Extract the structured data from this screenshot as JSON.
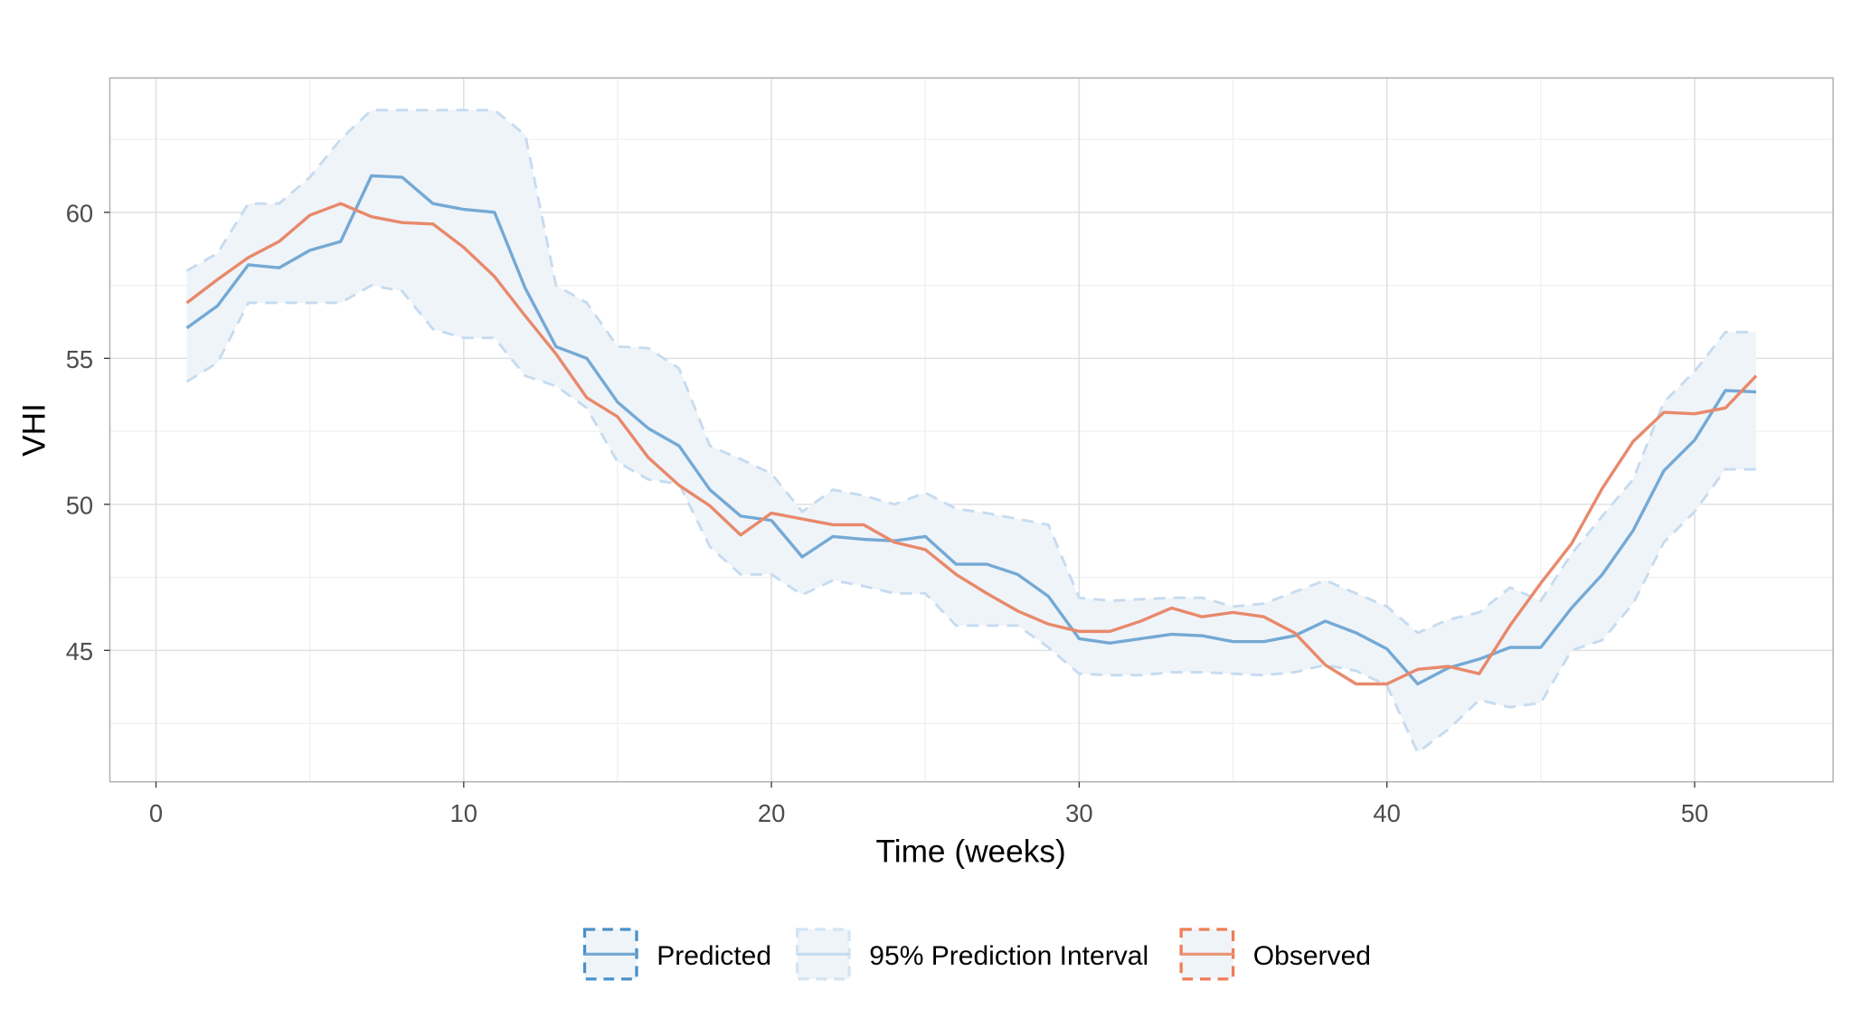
{
  "chart_data": {
    "type": "line",
    "title": "",
    "xlabel": "Time (weeks)",
    "ylabel": "VHI",
    "xlim": [
      -1.5,
      54.5
    ],
    "ylim": [
      40.5,
      64.6
    ],
    "xticks": [
      0,
      10,
      20,
      30,
      40,
      50
    ],
    "yticks": [
      45,
      50,
      55,
      60
    ],
    "grid": true,
    "legend_position": "bottom",
    "colors": {
      "predicted": "#74a9d4",
      "interval_fill": "#eff4f9",
      "interval_edge": "#c6dbef",
      "observed": "#e8896b",
      "observed_key": "#ef7d55",
      "predicted_key": "#4a90c8"
    },
    "x": [
      1,
      2,
      3,
      4,
      5,
      6,
      7,
      8,
      9,
      10,
      11,
      12,
      13,
      14,
      15,
      16,
      17,
      18,
      19,
      20,
      21,
      22,
      23,
      24,
      25,
      26,
      27,
      28,
      29,
      30,
      31,
      32,
      33,
      34,
      35,
      36,
      37,
      38,
      39,
      40,
      41,
      42,
      43,
      44,
      45,
      46,
      47,
      48,
      49,
      50,
      51,
      52
    ],
    "series": [
      {
        "name": "Predicted",
        "values": [
          56.04,
          56.8,
          58.2,
          58.1,
          58.7,
          59.0,
          61.25,
          61.2,
          60.3,
          60.1,
          60.0,
          57.4,
          55.4,
          55.0,
          53.5,
          52.6,
          52.0,
          50.5,
          49.6,
          49.45,
          48.2,
          48.9,
          48.8,
          48.75,
          48.9,
          47.95,
          47.95,
          47.6,
          46.85,
          45.4,
          45.25,
          45.4,
          45.55,
          45.5,
          45.3,
          45.3,
          45.5,
          46.0,
          45.6,
          45.05,
          43.85,
          44.4,
          44.7,
          45.1,
          45.1,
          46.45,
          47.6,
          49.1,
          51.15,
          52.2,
          53.9,
          53.85
        ]
      },
      {
        "name": "Observed",
        "values": [
          56.9,
          57.7,
          58.45,
          59.0,
          59.9,
          60.3,
          59.85,
          59.65,
          59.6,
          58.8,
          57.8,
          56.45,
          55.15,
          53.65,
          53.0,
          51.6,
          50.65,
          49.95,
          48.95,
          49.7,
          49.5,
          49.3,
          49.3,
          48.7,
          48.45,
          47.6,
          46.95,
          46.35,
          45.9,
          45.65,
          45.65,
          46.0,
          46.45,
          46.15,
          46.3,
          46.15,
          45.6,
          44.5,
          43.85,
          43.85,
          44.35,
          44.45,
          44.2,
          45.85,
          47.3,
          48.65,
          50.55,
          52.15,
          53.15,
          53.1,
          53.3,
          54.4
        ]
      },
      {
        "name": "95% Prediction Interval",
        "upper": [
          58.0,
          58.6,
          60.3,
          60.3,
          61.2,
          62.5,
          63.5,
          63.5,
          63.5,
          63.5,
          63.5,
          62.65,
          57.5,
          56.9,
          55.4,
          55.35,
          54.65,
          52.0,
          51.55,
          51.05,
          49.75,
          50.5,
          50.3,
          50.0,
          50.4,
          49.85,
          49.7,
          49.5,
          49.3,
          46.8,
          46.7,
          46.75,
          46.8,
          46.8,
          46.5,
          46.6,
          47.0,
          47.4,
          46.95,
          46.5,
          45.6,
          46.05,
          46.3,
          47.15,
          46.7,
          48.3,
          49.6,
          50.85,
          53.5,
          54.55,
          55.9,
          55.9
        ],
        "lower": [
          54.2,
          54.85,
          56.9,
          56.9,
          56.9,
          56.9,
          57.5,
          57.3,
          56.0,
          55.7,
          55.7,
          54.4,
          54.05,
          53.3,
          51.45,
          50.85,
          50.7,
          48.55,
          47.6,
          47.6,
          46.9,
          47.4,
          47.2,
          46.95,
          46.95,
          45.85,
          45.85,
          45.85,
          45.1,
          44.2,
          44.15,
          44.15,
          44.25,
          44.25,
          44.2,
          44.15,
          44.25,
          44.5,
          44.3,
          43.8,
          41.5,
          42.3,
          43.3,
          43.05,
          43.2,
          45.0,
          45.35,
          46.6,
          48.7,
          49.75,
          51.2,
          51.2
        ]
      }
    ],
    "legend": [
      "Predicted",
      "95% Prediction Interval",
      "Observed"
    ]
  }
}
